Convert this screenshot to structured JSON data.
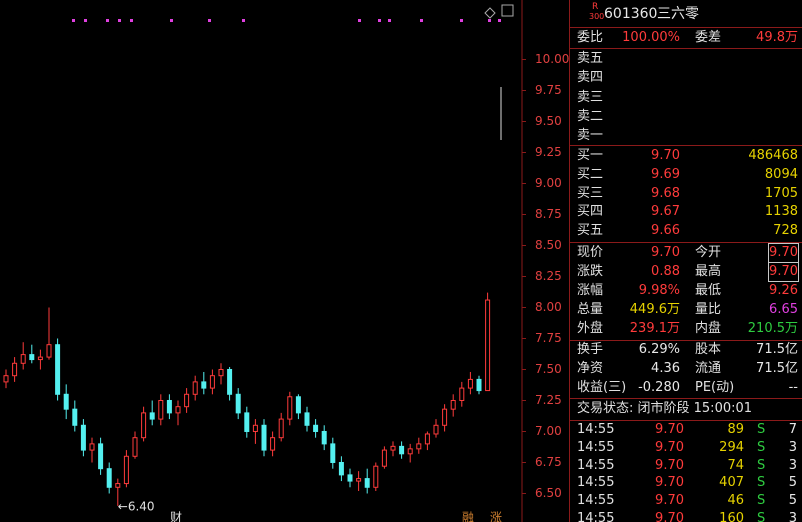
{
  "chart": {
    "ylim": [
      6.27,
      10.48
    ],
    "yticks": [
      {
        "value": 10,
        "label": "10.00"
      },
      {
        "value": 9.75,
        "label": "9.75"
      },
      {
        "value": 9.5,
        "label": "9.50"
      },
      {
        "value": 9.25,
        "label": "9.25"
      },
      {
        "value": 9,
        "label": "9.00"
      },
      {
        "value": 8.75,
        "label": "8.75"
      },
      {
        "value": 8.5,
        "label": "8.50"
      },
      {
        "value": 8.25,
        "label": "8.25"
      },
      {
        "value": 8,
        "label": "8.00"
      },
      {
        "value": 7.75,
        "label": "7.75"
      },
      {
        "value": 7.5,
        "label": "7.50"
      },
      {
        "value": 7.25,
        "label": "7.25"
      },
      {
        "value": 7,
        "label": "7.00"
      },
      {
        "value": 6.75,
        "label": "6.75"
      },
      {
        "value": 6.5,
        "label": "6.50"
      }
    ],
    "candles": [
      [
        7.4,
        7.5,
        7.35,
        7.45
      ],
      [
        7.45,
        7.6,
        7.4,
        7.55
      ],
      [
        7.55,
        7.72,
        7.5,
        7.62
      ],
      [
        7.62,
        7.7,
        7.55,
        7.58
      ],
      [
        7.58,
        7.66,
        7.5,
        7.6
      ],
      [
        7.6,
        8.0,
        7.58,
        7.7
      ],
      [
        7.7,
        7.75,
        7.25,
        7.3
      ],
      [
        7.3,
        7.38,
        7.1,
        7.18
      ],
      [
        7.18,
        7.25,
        7.0,
        7.05
      ],
      [
        7.05,
        7.1,
        6.8,
        6.85
      ],
      [
        6.85,
        6.95,
        6.75,
        6.9
      ],
      [
        6.9,
        6.95,
        6.65,
        6.7
      ],
      [
        6.7,
        6.75,
        6.5,
        6.55
      ],
      [
        6.55,
        6.62,
        6.4,
        6.58
      ],
      [
        6.58,
        6.85,
        6.55,
        6.8
      ],
      [
        6.8,
        7.0,
        6.78,
        6.95
      ],
      [
        6.95,
        7.2,
        6.92,
        7.15
      ],
      [
        7.15,
        7.25,
        7.05,
        7.1
      ],
      [
        7.1,
        7.3,
        7.05,
        7.25
      ],
      [
        7.25,
        7.3,
        7.1,
        7.15
      ],
      [
        7.15,
        7.25,
        7.05,
        7.2
      ],
      [
        7.2,
        7.35,
        7.15,
        7.3
      ],
      [
        7.3,
        7.45,
        7.25,
        7.4
      ],
      [
        7.4,
        7.48,
        7.3,
        7.35
      ],
      [
        7.35,
        7.5,
        7.3,
        7.45
      ],
      [
        7.45,
        7.55,
        7.38,
        7.5
      ],
      [
        7.5,
        7.52,
        7.25,
        7.3
      ],
      [
        7.3,
        7.35,
        7.1,
        7.15
      ],
      [
        7.15,
        7.2,
        6.95,
        7.0
      ],
      [
        7.0,
        7.1,
        6.9,
        7.05
      ],
      [
        7.05,
        7.1,
        6.8,
        6.85
      ],
      [
        6.85,
        7.0,
        6.8,
        6.95
      ],
      [
        6.95,
        7.15,
        6.92,
        7.1
      ],
      [
        7.1,
        7.32,
        7.05,
        7.28
      ],
      [
        7.28,
        7.3,
        7.1,
        7.15
      ],
      [
        7.15,
        7.2,
        7.0,
        7.05
      ],
      [
        7.05,
        7.1,
        6.95,
        7.0
      ],
      [
        7.0,
        7.05,
        6.85,
        6.9
      ],
      [
        6.9,
        6.95,
        6.7,
        6.75
      ],
      [
        6.75,
        6.8,
        6.6,
        6.65
      ],
      [
        6.65,
        6.7,
        6.55,
        6.6
      ],
      [
        6.6,
        6.68,
        6.52,
        6.62
      ],
      [
        6.62,
        6.7,
        6.5,
        6.55
      ],
      [
        6.55,
        6.75,
        6.52,
        6.72
      ],
      [
        6.72,
        6.88,
        6.7,
        6.85
      ],
      [
        6.85,
        6.92,
        6.8,
        6.88
      ],
      [
        6.88,
        6.92,
        6.78,
        6.82
      ],
      [
        6.82,
        6.9,
        6.75,
        6.86
      ],
      [
        6.86,
        6.95,
        6.82,
        6.9
      ],
      [
        6.9,
        7.0,
        6.85,
        6.98
      ],
      [
        6.98,
        7.1,
        6.95,
        7.05
      ],
      [
        7.05,
        7.22,
        7.0,
        7.18
      ],
      [
        7.18,
        7.3,
        7.12,
        7.25
      ],
      [
        7.25,
        7.4,
        7.2,
        7.35
      ],
      [
        7.35,
        7.48,
        7.3,
        7.42
      ],
      [
        7.42,
        7.45,
        7.3,
        7.33
      ],
      [
        7.33,
        8.12,
        7.33,
        8.06
      ]
    ],
    "low_marker": "←6.40",
    "markers": [
      "财",
      "融",
      "涨"
    ]
  },
  "quote": {
    "badge_top": "R",
    "badge_bottom": "300",
    "code": "601360",
    "name": "三六零",
    "ratio": [
      "委比",
      "100.00%",
      "委差",
      "49.8万"
    ],
    "asks": [
      "卖五",
      "卖四",
      "卖三",
      "卖二",
      "卖一"
    ],
    "bids": [
      [
        "买一",
        "9.70",
        "486468"
      ],
      [
        "买二",
        "9.69",
        "8094"
      ],
      [
        "买三",
        "9.68",
        "1705"
      ],
      [
        "买四",
        "9.67",
        "1138"
      ],
      [
        "买五",
        "9.66",
        "728"
      ]
    ],
    "stats": [
      [
        "现价",
        "9.70",
        "今开",
        "9.70"
      ],
      [
        "涨跌",
        "0.88",
        "最高",
        "9.70"
      ],
      [
        "涨幅",
        "9.98%",
        "最低",
        "9.26"
      ],
      [
        "总量",
        "449.6万",
        "量比",
        "6.65"
      ],
      [
        "外盘",
        "239.1万",
        "内盘",
        "210.5万"
      ]
    ],
    "finance": [
      [
        "换手",
        "6.29%",
        "股本",
        "71.5亿"
      ],
      [
        "净资",
        "4.36",
        "流通",
        "71.5亿"
      ],
      [
        "收益(三)",
        "-0.280",
        "PE(动)",
        "--"
      ]
    ],
    "status": "交易状态: 闭市阶段 15:00:01",
    "ticks": [
      [
        "14:55",
        "9.70",
        "89",
        "S",
        "7"
      ],
      [
        "14:55",
        "9.70",
        "294",
        "S",
        "3"
      ],
      [
        "14:55",
        "9.70",
        "74",
        "S",
        "3"
      ],
      [
        "14:55",
        "9.70",
        "407",
        "S",
        "5"
      ],
      [
        "14:55",
        "9.70",
        "46",
        "S",
        "5"
      ],
      [
        "14:55",
        "9.70",
        "160",
        "S",
        "3"
      ]
    ]
  }
}
